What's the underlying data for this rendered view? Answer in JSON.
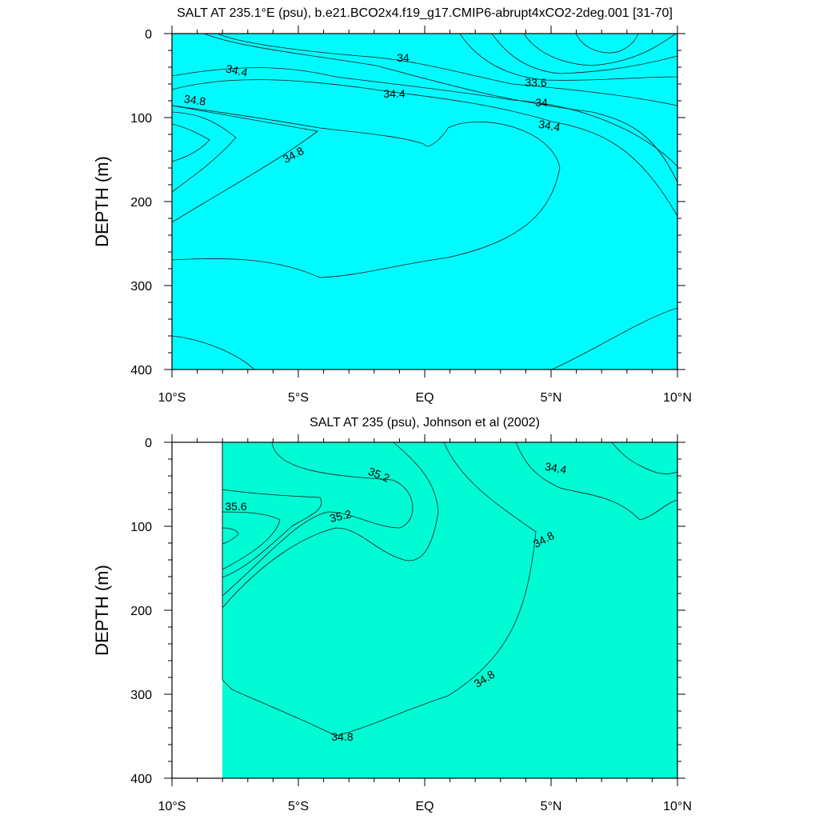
{
  "chart_data": [
    {
      "type": "contour",
      "title": "SALT AT 235.1°E (psu), b.e21.BCO2x4.f19_g17.CMIP6-abrupt4xCO2-2deg.001 [31-70]",
      "ylabel": "DEPTH (m)",
      "xlabel": "",
      "xlim": [
        -10,
        10
      ],
      "ylim": [
        0,
        400
      ],
      "x_ticks": [
        -10,
        -5,
        0,
        5,
        10
      ],
      "x_tick_labels": [
        "10°S",
        "5°S",
        "EQ",
        "5°N",
        "10°N"
      ],
      "y_ticks": [
        0,
        100,
        200,
        300,
        400
      ],
      "y_tick_labels": [
        "0",
        "100",
        "200",
        "300",
        "400"
      ],
      "contour_levels": [
        33.2,
        33.6,
        34.0,
        34.2,
        34.4,
        34.6,
        34.8,
        35.0,
        35.2
      ],
      "contour_labels": [
        {
          "text": "34",
          "x": -0.9,
          "y": 28
        },
        {
          "text": "33.6",
          "x": 4.3,
          "y": 58
        },
        {
          "text": "34",
          "x": 4.6,
          "y": 84
        },
        {
          "text": "34.4",
          "x": -7.6,
          "y": 45
        },
        {
          "text": "34.4",
          "x": -1.2,
          "y": 72
        },
        {
          "text": "34.4",
          "x": 5.0,
          "y": 112
        },
        {
          "text": "34.8",
          "x": -9.1,
          "y": 80
        },
        {
          "text": "34.8",
          "x": -5.2,
          "y": 145
        }
      ]
    },
    {
      "type": "contour",
      "title": "SALT AT 235 (psu), Johnson et al (2002)",
      "ylabel": "DEPTH (m)",
      "xlabel": "",
      "xlim": [
        -10,
        10
      ],
      "ylim": [
        0,
        400
      ],
      "x_ticks": [
        -10,
        -5,
        0,
        5,
        10
      ],
      "x_tick_labels": [
        "10°S",
        "5°S",
        "EQ",
        "5°N",
        "10°N"
      ],
      "y_ticks": [
        0,
        100,
        200,
        300,
        400
      ],
      "y_tick_labels": [
        "0",
        "100",
        "200",
        "300",
        "400"
      ],
      "data_xlim": [
        -8,
        10
      ],
      "contour_levels": [
        34.0,
        34.2,
        34.4,
        34.6,
        34.8,
        35.0,
        35.2,
        35.4,
        35.6,
        35.8
      ],
      "contour_labels": [
        {
          "text": "35.2",
          "x": -1.8,
          "y": 35
        },
        {
          "text": "35.2",
          "x": -3.3,
          "y": 85
        },
        {
          "text": "35.6",
          "x": -7.5,
          "y": 70
        },
        {
          "text": "34.4",
          "x": 5.1,
          "y": 25
        },
        {
          "text": "34.8",
          "x": 4.8,
          "y": 112
        },
        {
          "text": "34.8",
          "x": 2.4,
          "y": 275
        },
        {
          "text": "34.8",
          "x": -3.2,
          "y": 345
        }
      ]
    }
  ]
}
